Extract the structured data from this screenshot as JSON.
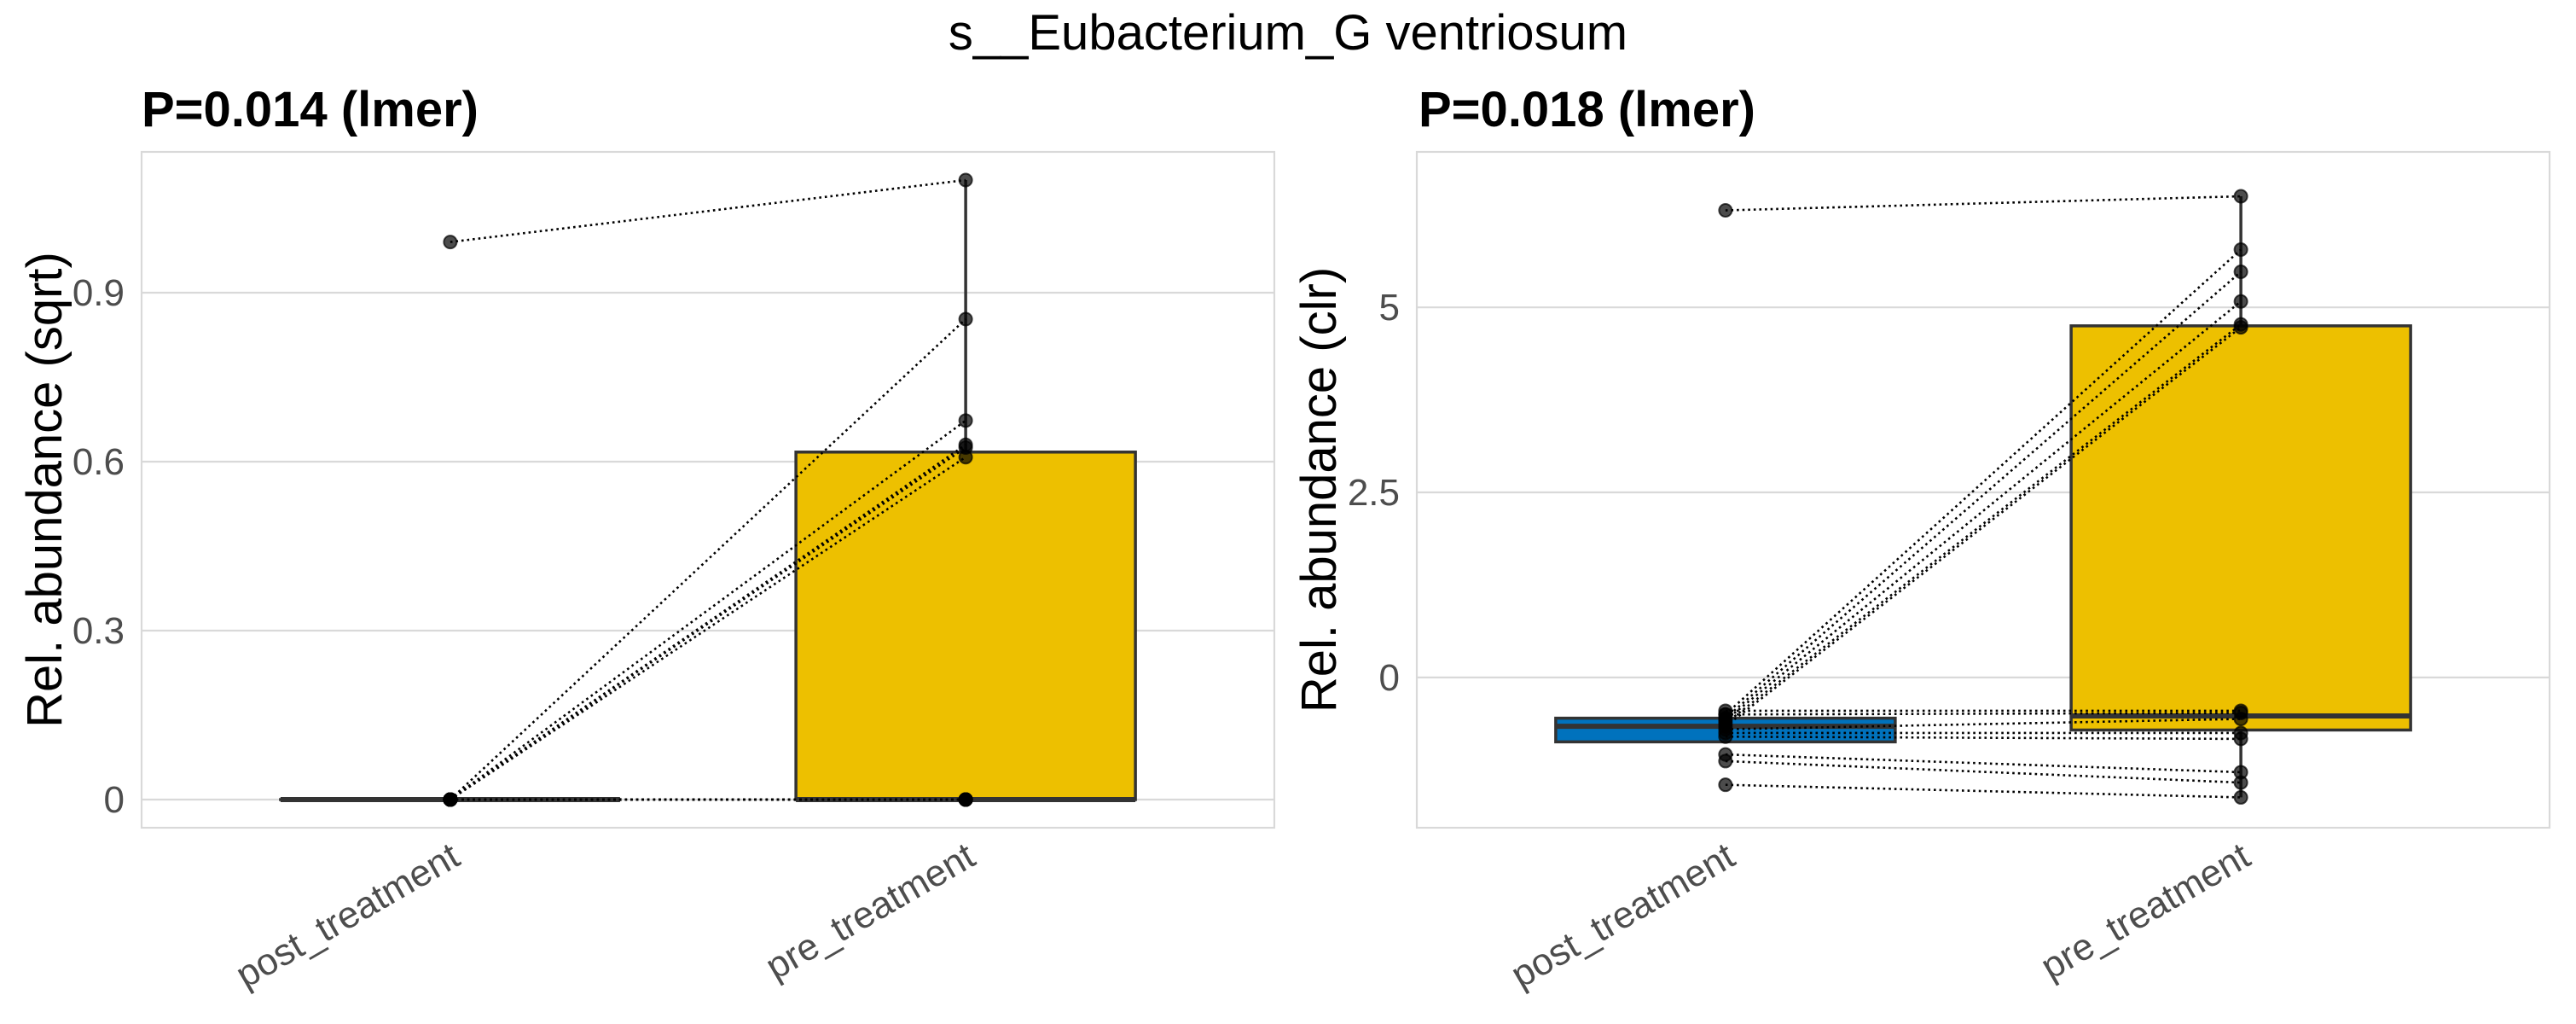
{
  "figure": {
    "title": "s__Eubacterium_G ventriosum"
  },
  "colors": {
    "post_treatment": "#0072BD",
    "pre_treatment": "#EDC000",
    "box_edge": "#333333",
    "grid": "#d9d9d9",
    "point": "#000000"
  },
  "chart_data": [
    {
      "type": "box-paired",
      "title": "P=0.014 (lmer)",
      "ylabel": "Rel. abundance (sqrt)",
      "xlabel": "",
      "categories": [
        "post_treatment",
        "pre_treatment"
      ],
      "ylim": [
        -0.05,
        1.15
      ],
      "yticks": [
        0,
        0.3,
        0.6,
        0.9
      ],
      "ytick_labels": [
        "0",
        "0.3",
        "0.6",
        "0.9"
      ],
      "grid": true,
      "boxes": [
        {
          "category": "post_treatment",
          "q1": 0,
          "median": 0,
          "q3": 0,
          "whisker_low": 0,
          "whisker_high": 0,
          "fill": "#0072BD"
        },
        {
          "category": "pre_treatment",
          "q1": 0,
          "median": 0,
          "q3": 0.617,
          "whisker_low": 0,
          "whisker_high": 1.1,
          "fill": "#EDC000"
        }
      ],
      "pairs": [
        {
          "post": 0.99,
          "pre": 1.1
        },
        {
          "post": 0,
          "pre": 0.853
        },
        {
          "post": 0,
          "pre": 0.673
        },
        {
          "post": 0,
          "pre": 0.63
        },
        {
          "post": 0,
          "pre": 0.625
        },
        {
          "post": 0,
          "pre": 0.608
        },
        {
          "post": 0,
          "pre": 0
        },
        {
          "post": 0,
          "pre": 0
        },
        {
          "post": 0,
          "pre": 0
        },
        {
          "post": 0,
          "pre": 0
        },
        {
          "post": 0,
          "pre": 0
        },
        {
          "post": 0,
          "pre": 0
        },
        {
          "post": 0,
          "pre": 0
        }
      ]
    },
    {
      "type": "box-paired",
      "title": "P=0.018 (lmer)",
      "ylabel": "Rel. abundance (clr)",
      "xlabel": "",
      "categories": [
        "post_treatment",
        "pre_treatment"
      ],
      "ylim": [
        -2.03,
        7.1
      ],
      "yticks": [
        0,
        2.5,
        5
      ],
      "ytick_labels": [
        "0",
        "2.5",
        "5"
      ],
      "grid": true,
      "boxes": [
        {
          "category": "post_treatment",
          "q1": -0.87,
          "median": -0.66,
          "q3": -0.55,
          "whisker_low": -0.87,
          "whisker_high": -0.55,
          "fill": "#0072BD"
        },
        {
          "category": "pre_treatment",
          "q1": -0.71,
          "median": -0.52,
          "q3": 4.75,
          "whisker_low": -1.62,
          "whisker_high": 6.5,
          "fill": "#EDC000"
        }
      ],
      "pairs": [
        {
          "post": 6.31,
          "pre": 6.5
        },
        {
          "post": -0.5,
          "pre": 5.78
        },
        {
          "post": -0.55,
          "pre": 5.48
        },
        {
          "post": -0.58,
          "pre": 5.08
        },
        {
          "post": -0.62,
          "pre": 4.77
        },
        {
          "post": -0.66,
          "pre": 4.73
        },
        {
          "post": -0.45,
          "pre": -0.45
        },
        {
          "post": -0.5,
          "pre": -0.48
        },
        {
          "post": -0.7,
          "pre": -0.56
        },
        {
          "post": -0.75,
          "pre": -0.75
        },
        {
          "post": -0.8,
          "pre": -0.83
        },
        {
          "post": -1.04,
          "pre": -1.28
        },
        {
          "post": -1.13,
          "pre": -1.42
        },
        {
          "post": -1.45,
          "pre": -1.62
        }
      ]
    }
  ]
}
